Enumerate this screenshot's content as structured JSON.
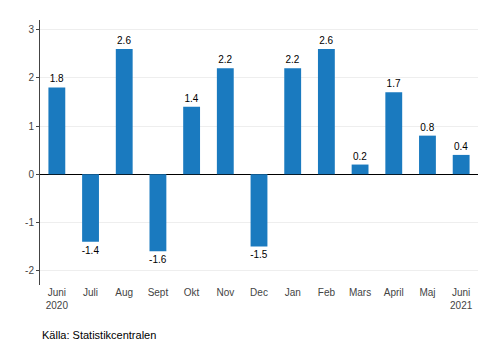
{
  "chart_data": {
    "type": "bar",
    "categories": [
      "Juni\n2020",
      "Juli",
      "Aug",
      "Sept",
      "Okt",
      "Nov",
      "Dec",
      "Jan",
      "Feb",
      "Mars",
      "April",
      "Maj",
      "Juni\n2021"
    ],
    "values": [
      1.8,
      -1.4,
      2.6,
      -1.6,
      1.4,
      2.2,
      -1.5,
      2.2,
      2.6,
      0.2,
      1.7,
      0.8,
      0.4
    ],
    "color": "#1a7abf",
    "ylim": [
      -2.3,
      3.2
    ],
    "yticks": [
      -2,
      -1,
      0,
      1,
      2,
      3
    ],
    "grid": true,
    "data_labels": true,
    "annotations": [
      "Källa: Statistikcentralen"
    ]
  }
}
